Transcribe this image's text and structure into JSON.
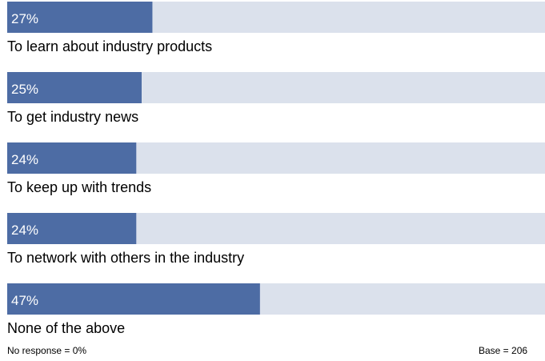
{
  "chart_data": {
    "type": "bar",
    "orientation": "horizontal",
    "categories": [
      "To learn about industry products",
      "To get industry news",
      "To keep up with trends",
      "To network with others in the industry",
      "None of the above"
    ],
    "values": [
      27,
      25,
      24,
      24,
      47
    ],
    "value_labels": [
      "27%",
      "25%",
      "24%",
      "24%",
      "47%"
    ],
    "xlim": [
      0,
      100
    ],
    "unit": "%",
    "grid": false,
    "legend": "none",
    "colors": {
      "bar": "#4d6ca4",
      "track": "#dbe1ec",
      "value_label": "#ffffff",
      "category_label": "#000000"
    }
  },
  "footer": {
    "no_response": "No response = 0%",
    "base": "Base = 206"
  }
}
